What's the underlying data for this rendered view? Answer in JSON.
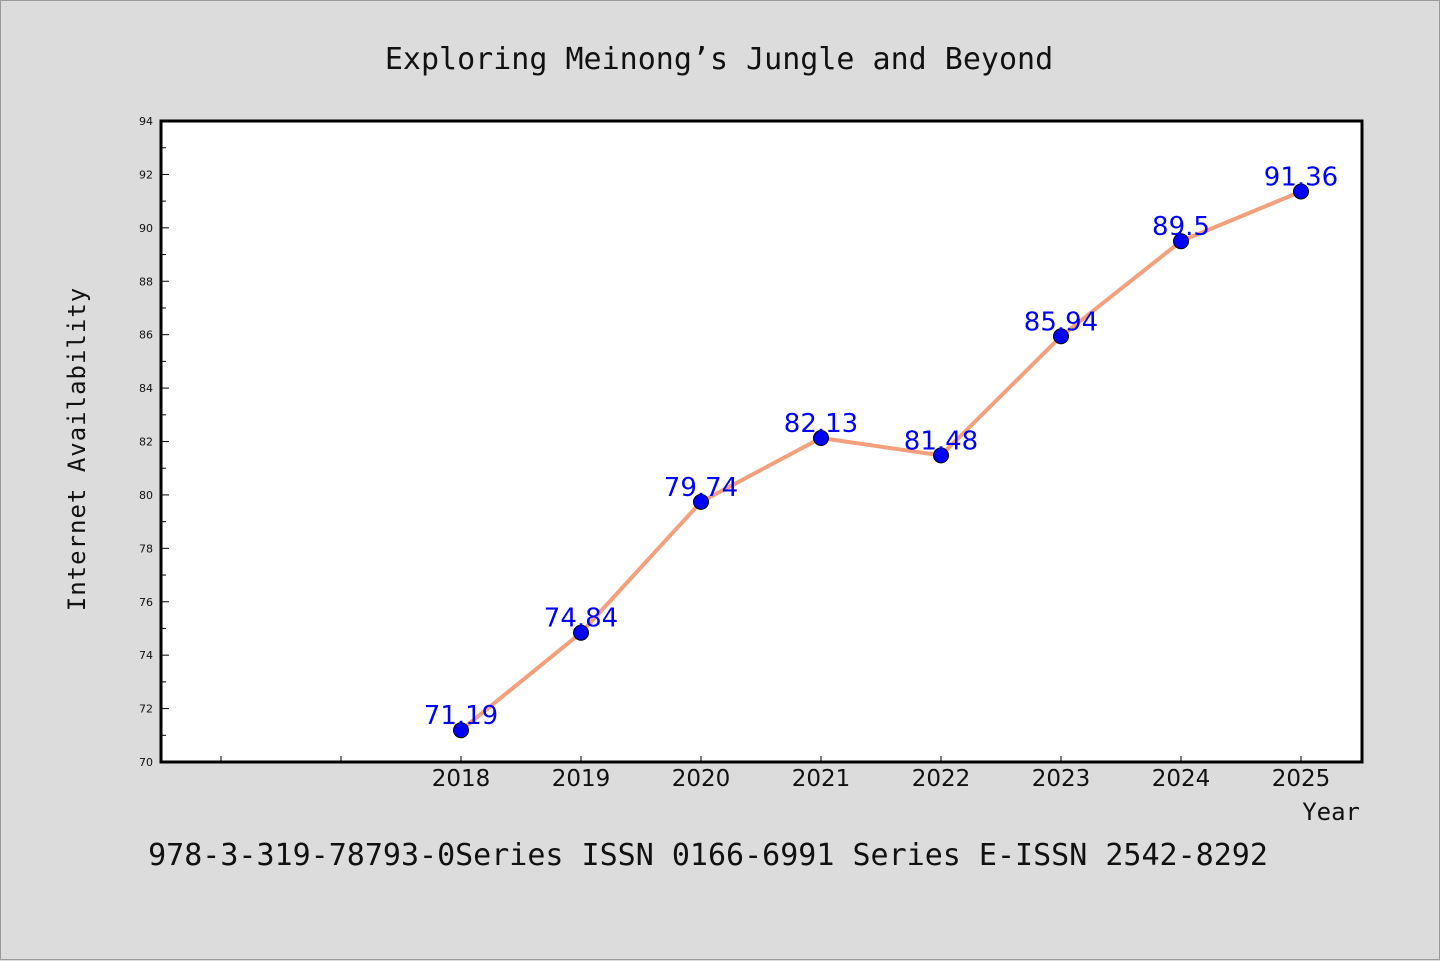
{
  "chart_data": {
    "type": "line",
    "title": "Exploring Meinong’s Jungle and Beyond",
    "xlabel": "Year",
    "ylabel": "Internet Availability",
    "categories": [
      "2018",
      "2019",
      "2020",
      "2021",
      "2022",
      "2023",
      "2024",
      "2025"
    ],
    "series": [
      {
        "values": [
          71.19,
          74.84,
          79.74,
          82.13,
          81.48,
          85.94,
          89.5,
          91.36
        ]
      }
    ],
    "data_labels": [
      "71.19",
      "74.84",
      "79.74",
      "82.13",
      "81.48",
      "85.94",
      "89.5",
      "91.36"
    ],
    "ylim": [
      70,
      94
    ],
    "yticks": [
      "70",
      "72",
      "74",
      "76",
      "78",
      "80",
      "82",
      "84",
      "86",
      "88",
      "90",
      "92",
      "94"
    ],
    "grid": false,
    "legend": "none",
    "colors": {
      "line": "#f4a07c",
      "marker": "#0000ff",
      "data_label": "#0000ff",
      "background": "#dcdcdc",
      "plot_background": "#ffffff"
    }
  },
  "footer": "978-3-319-78793-0Series ISSN 0166-6991 Series E-ISSN 2542-8292"
}
